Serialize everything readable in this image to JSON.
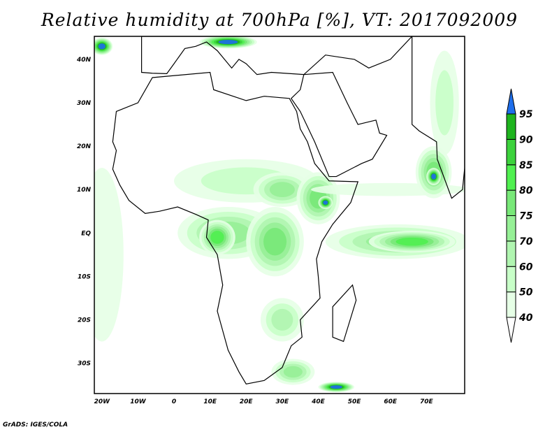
{
  "title": "Relative humidity at 700hPa [%], VT: 2017092009",
  "credit": "GrADS: IGES/COLA",
  "map": {
    "lon_range": [
      -22.1,
      80.6
    ],
    "lat_range": [
      -37,
      45.3
    ],
    "lon_ticks": [
      {
        "v": -20,
        "label": "20W"
      },
      {
        "v": -10,
        "label": "10W"
      },
      {
        "v": 0,
        "label": "0"
      },
      {
        "v": 10,
        "label": "10E"
      },
      {
        "v": 20,
        "label": "20E"
      },
      {
        "v": 30,
        "label": "30E"
      },
      {
        "v": 40,
        "label": "40E"
      },
      {
        "v": 50,
        "label": "50E"
      },
      {
        "v": 60,
        "label": "60E"
      },
      {
        "v": 70,
        "label": "70E"
      }
    ],
    "lat_ticks": [
      {
        "v": 40,
        "label": "40N"
      },
      {
        "v": 30,
        "label": "30N"
      },
      {
        "v": 20,
        "label": "20N"
      },
      {
        "v": 10,
        "label": "10N"
      },
      {
        "v": 0,
        "label": "EQ"
      },
      {
        "v": -10,
        "label": "10S"
      },
      {
        "v": -20,
        "label": "20S"
      },
      {
        "v": -30,
        "label": "30S"
      }
    ]
  },
  "colorbar": {
    "levels": [
      "40",
      "50",
      "60",
      "70",
      "75",
      "80",
      "85",
      "90",
      "95"
    ],
    "colors": [
      "#e6ffe6",
      "#c8ffc8",
      "#b0f5b0",
      "#96f096",
      "#78e878",
      "#50f050",
      "#3cd23c",
      "#1eb41e"
    ],
    "over_color": "#1e6eeb",
    "under_color": "#ffffff"
  },
  "humidity_features": [
    {
      "lon": 15,
      "lat": 0,
      "rx": 14,
      "ry": 6,
      "level": 3
    },
    {
      "lon": 28,
      "lat": -2,
      "rx": 8,
      "ry": 8,
      "level": 4
    },
    {
      "lon": 12,
      "lat": -1,
      "rx": 5,
      "ry": 4,
      "level": 5
    },
    {
      "lon": 20,
      "lat": 12,
      "rx": 20,
      "ry": 5,
      "level": 1
    },
    {
      "lon": 30,
      "lat": 10,
      "rx": 8,
      "ry": 4,
      "level": 3
    },
    {
      "lon": 40,
      "lat": 8,
      "rx": 6,
      "ry": 6,
      "level": 4
    },
    {
      "lon": 42,
      "lat": 7,
      "rx": 2,
      "ry": 1.5,
      "level": 8
    },
    {
      "lon": 62,
      "lat": -2,
      "rx": 20,
      "ry": 4,
      "level": 3
    },
    {
      "lon": 66,
      "lat": -2,
      "rx": 12,
      "ry": 2.5,
      "level": 5
    },
    {
      "lon": 60,
      "lat": 10,
      "rx": 22,
      "ry": 1.5,
      "level": 0
    },
    {
      "lon": 72,
      "lat": 14,
      "rx": 5,
      "ry": 6,
      "level": 4
    },
    {
      "lon": 72,
      "lat": 13,
      "rx": 2,
      "ry": 2,
      "level": 8
    },
    {
      "lon": -20,
      "lat": -5,
      "rx": 6,
      "ry": 20,
      "level": 0
    },
    {
      "lon": 30,
      "lat": -20,
      "rx": 6,
      "ry": 5,
      "level": 2
    },
    {
      "lon": 33,
      "lat": -32,
      "rx": 6,
      "ry": 3,
      "level": 3
    },
    {
      "lon": 45,
      "lat": -35.5,
      "rx": 5,
      "ry": 1.2,
      "level": 8
    },
    {
      "lon": -20,
      "lat": 43,
      "rx": 3,
      "ry": 2,
      "level": 8
    },
    {
      "lon": 15,
      "lat": 44,
      "rx": 8,
      "ry": 1.5,
      "level": 8
    },
    {
      "lon": 75,
      "lat": 30,
      "rx": 4,
      "ry": 12,
      "level": 1
    }
  ]
}
